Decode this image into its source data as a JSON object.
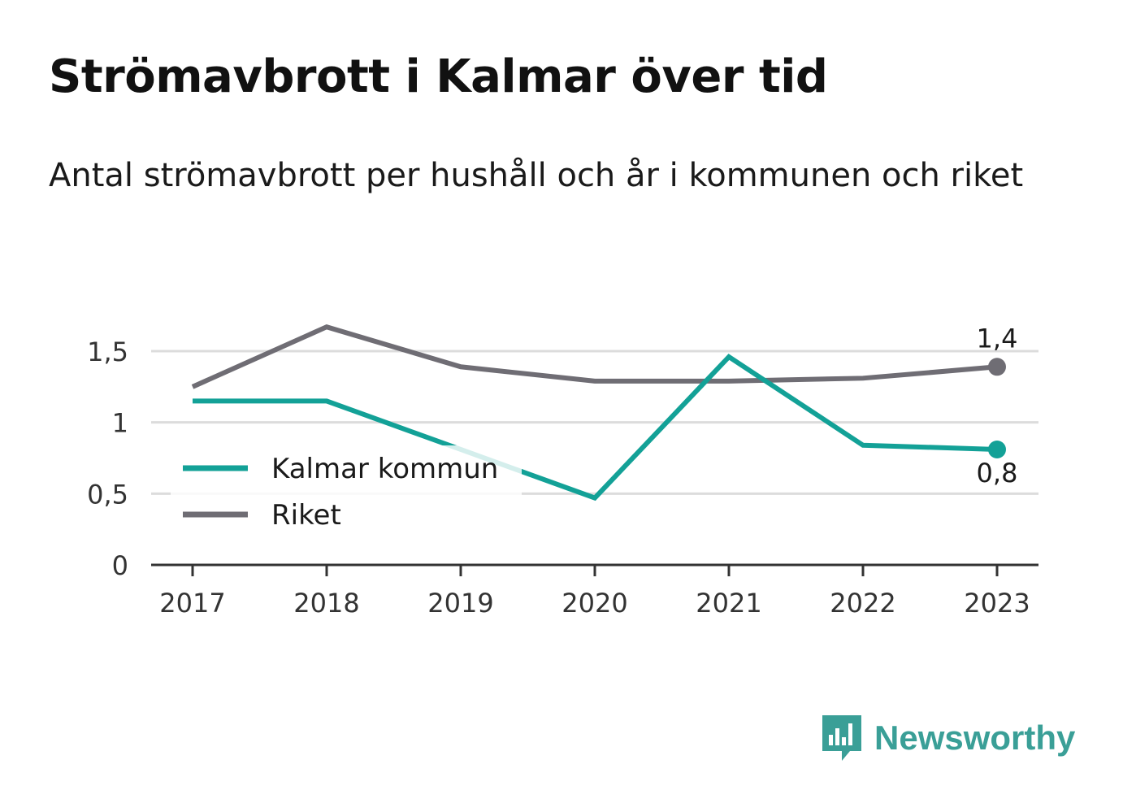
{
  "header": {
    "title": "Strömavbrott i Kalmar över tid",
    "subtitle": "Antal strömavbrott per hushåll och år i kommunen och riket"
  },
  "chart_data": {
    "type": "line",
    "categories": [
      "2017",
      "2018",
      "2019",
      "2020",
      "2021",
      "2022",
      "2023"
    ],
    "ylim": [
      0,
      1.8
    ],
    "yticks": [
      0,
      0.5,
      1,
      1.5
    ],
    "ytick_labels": [
      "0",
      "0,5",
      "1",
      "1,5"
    ],
    "grid": true,
    "legend_position": "center-left",
    "series": [
      {
        "name": "Kalmar kommun",
        "color": "#13a197",
        "values": [
          1.15,
          1.15,
          0.81,
          0.47,
          1.46,
          0.84,
          0.81
        ],
        "end_label": "0,8"
      },
      {
        "name": "Riket",
        "color": "#6f6d74",
        "values": [
          1.25,
          1.67,
          1.39,
          1.29,
          1.29,
          1.31,
          1.39
        ],
        "end_label": "1,4"
      }
    ]
  },
  "brand": {
    "name": "Newsworthy",
    "color": "#3a9f97",
    "icon": "newsworthy-logo-icon"
  }
}
